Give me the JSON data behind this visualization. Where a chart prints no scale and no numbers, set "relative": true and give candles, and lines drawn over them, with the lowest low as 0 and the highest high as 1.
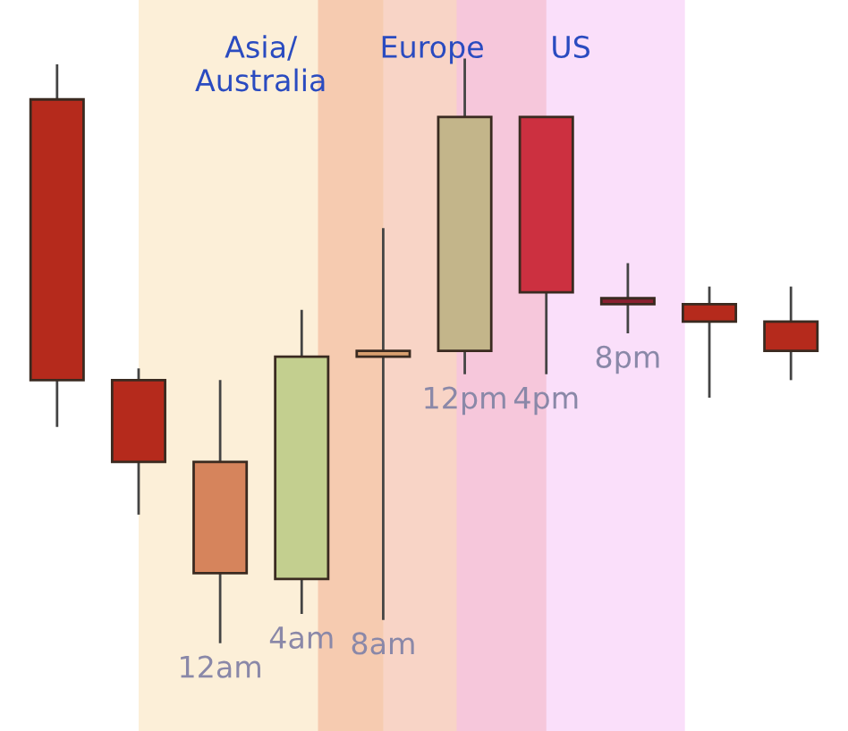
{
  "chart_data": {
    "type": "candlestick",
    "relative": true,
    "categories": [
      null,
      null,
      "12am",
      "4am",
      "8am",
      "12pm",
      "4pm",
      "8pm",
      null,
      null
    ],
    "ohlc": [
      [
        0.93,
        0.99,
        0.37,
        0.45
      ],
      [
        0.45,
        0.47,
        0.22,
        0.31
      ],
      [
        0.31,
        0.45,
        0.0,
        0.12
      ],
      [
        0.11,
        0.57,
        0.05,
        0.49
      ],
      [
        0.49,
        0.71,
        0.04,
        0.5
      ],
      [
        0.5,
        1.0,
        0.46,
        0.9
      ],
      [
        0.9,
        0.9,
        0.46,
        0.6
      ],
      [
        0.59,
        0.65,
        0.53,
        0.58
      ],
      [
        0.58,
        0.61,
        0.42,
        0.55
      ],
      [
        0.55,
        0.61,
        0.45,
        0.5
      ]
    ],
    "colors": [
      "#b52a1c",
      "#b52a1c",
      "#d6845c",
      "#c3cf8f",
      "#d9a070",
      "#c3b58a",
      "#cc3040",
      "#8a2030",
      "#b52a1c",
      "#b52a1c"
    ],
    "annotations": [
      "Asia/\nAustralia",
      "Europe",
      "US"
    ]
  }
}
